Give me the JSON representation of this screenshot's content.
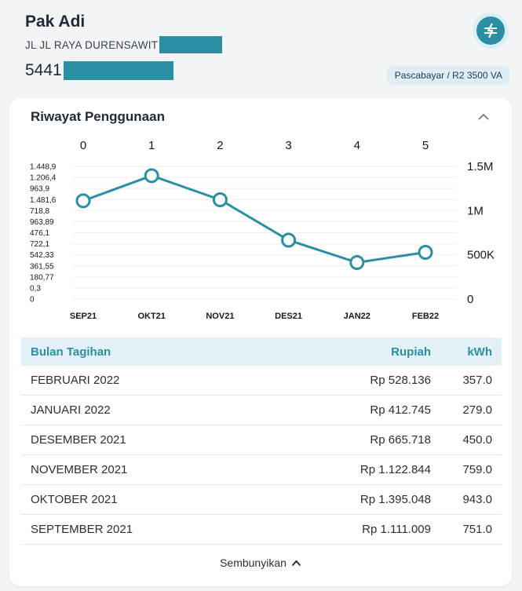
{
  "customer": {
    "name": "Pak Adi",
    "address": "JL JL RAYA DURENSAWIT",
    "id_prefix": "5441",
    "tariff": "Pascabayar / R2 3500 VA"
  },
  "logo_icon": "pln-lightning-icon",
  "accent_color": "#2b8fa3",
  "section": {
    "title": "Riwayat Penggunaan",
    "collapse_icon": "chevron-up-icon"
  },
  "chart_data": {
    "type": "line",
    "top_ticks": [
      "0",
      "1",
      "2",
      "3",
      "4",
      "5"
    ],
    "categories": [
      "SEP21",
      "OKT21",
      "NOV21",
      "DES21",
      "JAN22",
      "FEB22"
    ],
    "values": [
      1111009,
      1395048,
      1122844,
      665718,
      412745,
      528136
    ],
    "right_ticks": [
      "1.5M",
      "1M",
      "500K",
      "0"
    ],
    "right_tick_values": [
      1500000,
      1000000,
      500000,
      0
    ],
    "left_ticks": [
      "1.448,9",
      "1.206,4",
      "963,9",
      "1.481,6",
      "718,8",
      "963,89",
      "476,1",
      "722,1",
      "542,33",
      "361,55",
      "180,77",
      "0,3",
      "0"
    ],
    "ylim": [
      0,
      1500000
    ],
    "grid": true,
    "color": "#2b8fa3"
  },
  "table": {
    "headers": {
      "month": "Bulan Tagihan",
      "rupiah": "Rupiah",
      "kwh": "kWh"
    },
    "rows": [
      {
        "month": "FEBRUARI 2022",
        "rupiah": "Rp 528.136",
        "kwh": "357.0"
      },
      {
        "month": "JANUARI 2022",
        "rupiah": "Rp 412.745",
        "kwh": "279.0"
      },
      {
        "month": "DESEMBER 2021",
        "rupiah": "Rp 665.718",
        "kwh": "450.0"
      },
      {
        "month": "NOVEMBER 2021",
        "rupiah": "Rp 1.122.844",
        "kwh": "759.0"
      },
      {
        "month": "OKTOBER 2021",
        "rupiah": "Rp 1.395.048",
        "kwh": "943.0"
      },
      {
        "month": "SEPTEMBER 2021",
        "rupiah": "Rp 1.111.009",
        "kwh": "751.0"
      }
    ]
  },
  "hide_label": "Sembunyikan",
  "hide_icon": "chevron-up-icon"
}
